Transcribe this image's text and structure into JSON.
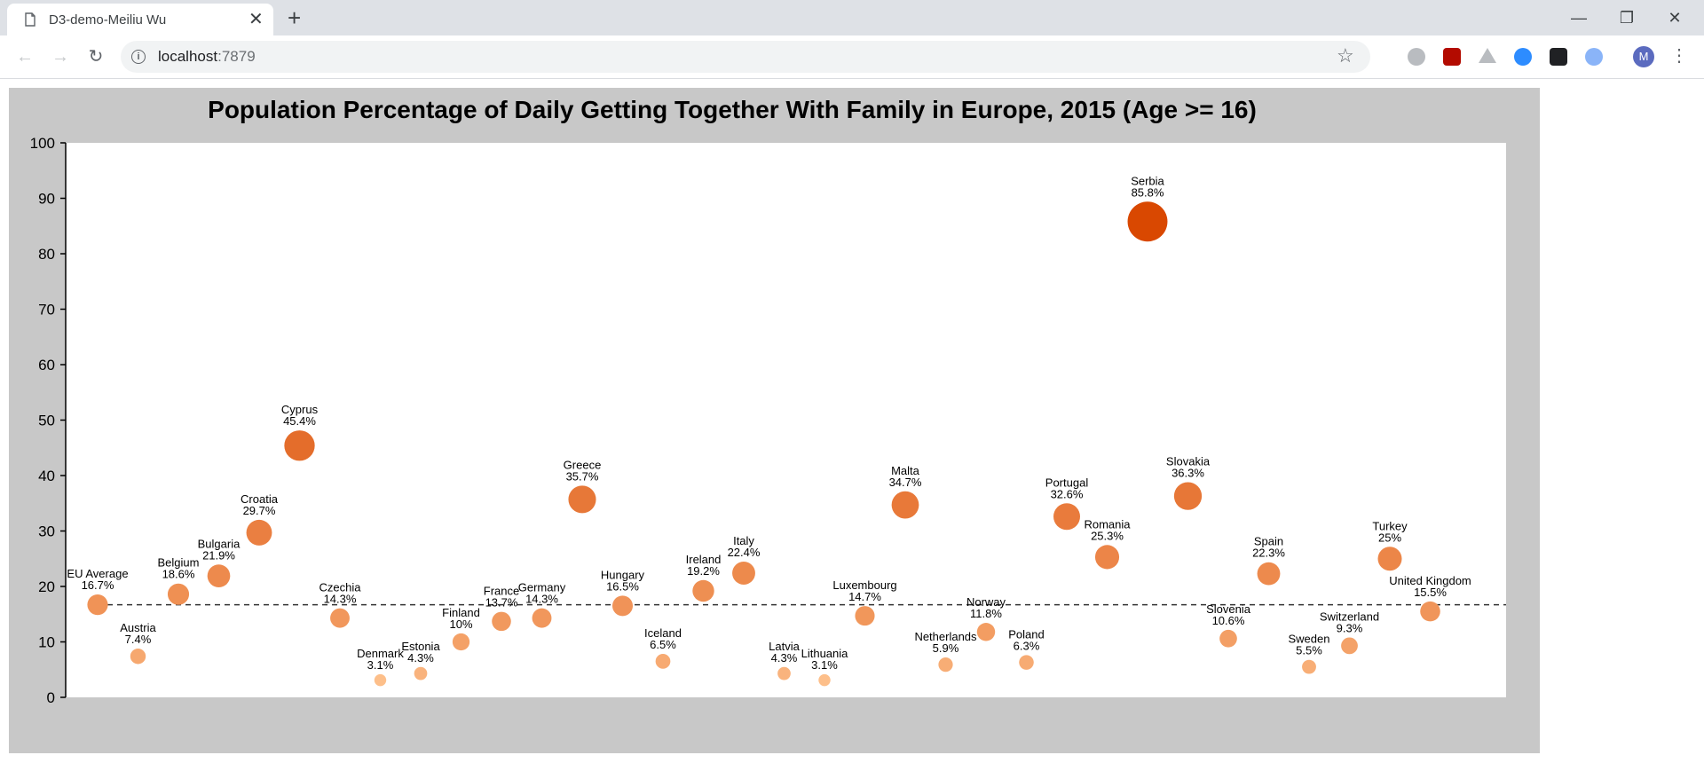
{
  "browser": {
    "tab_title": "D3-demo-Meiliu Wu",
    "url_host": "localhost",
    "url_port": ":7879",
    "avatar_letter": "M",
    "icons": [
      "page-icon",
      "close-icon",
      "plus-icon",
      "minimize-icon",
      "restore-icon",
      "close-window-icon",
      "back-icon",
      "forward-icon",
      "reload-icon",
      "info-icon",
      "star-icon",
      "skype-icon",
      "pdf-icon",
      "drive-icon",
      "zoom-icon",
      "incognito-icon",
      "edge-icon",
      "menu-icon"
    ]
  },
  "chart_data": {
    "type": "scatter",
    "title": "Population Percentage of Daily Getting Together With Family in Europe, 2015 (Age >= 16)",
    "ylim": [
      0,
      100
    ],
    "yticks": [
      "0",
      "10",
      "20",
      "30",
      "40",
      "50",
      "60",
      "70",
      "80",
      "90",
      "100"
    ],
    "reference_line": {
      "label": "EU Average",
      "value": 16.7,
      "style": "dashed"
    },
    "colors": {
      "low": "#fdbf8a",
      "high": "#d94801",
      "panel": "#c8c8c8",
      "plot": "#ffffff"
    },
    "points": [
      {
        "country": "EU Average",
        "value": 16.7,
        "label": "16.7%"
      },
      {
        "country": "Austria",
        "value": 7.4,
        "label": "7.4%"
      },
      {
        "country": "Belgium",
        "value": 18.6,
        "label": "18.6%"
      },
      {
        "country": "Bulgaria",
        "value": 21.9,
        "label": "21.9%"
      },
      {
        "country": "Croatia",
        "value": 29.7,
        "label": "29.7%"
      },
      {
        "country": "Cyprus",
        "value": 45.4,
        "label": "45.4%"
      },
      {
        "country": "Czechia",
        "value": 14.3,
        "label": "14.3%"
      },
      {
        "country": "Denmark",
        "value": 3.1,
        "label": "3.1%"
      },
      {
        "country": "Estonia",
        "value": 4.3,
        "label": "4.3%"
      },
      {
        "country": "Finland",
        "value": 10,
        "label": "10%"
      },
      {
        "country": "France",
        "value": 13.7,
        "label": "13.7%"
      },
      {
        "country": "Germany",
        "value": 14.3,
        "label": "14.3%"
      },
      {
        "country": "Greece",
        "value": 35.7,
        "label": "35.7%"
      },
      {
        "country": "Hungary",
        "value": 16.5,
        "label": "16.5%"
      },
      {
        "country": "Iceland",
        "value": 6.5,
        "label": "6.5%"
      },
      {
        "country": "Ireland",
        "value": 19.2,
        "label": "19.2%"
      },
      {
        "country": "Italy",
        "value": 22.4,
        "label": "22.4%"
      },
      {
        "country": "Latvia",
        "value": 4.3,
        "label": "4.3%"
      },
      {
        "country": "Lithuania",
        "value": 3.1,
        "label": "3.1%"
      },
      {
        "country": "Luxembourg",
        "value": 14.7,
        "label": "14.7%"
      },
      {
        "country": "Malta",
        "value": 34.7,
        "label": "34.7%"
      },
      {
        "country": "Netherlands",
        "value": 5.9,
        "label": "5.9%"
      },
      {
        "country": "Norway",
        "value": 11.8,
        "label": "11.8%"
      },
      {
        "country": "Poland",
        "value": 6.3,
        "label": "6.3%"
      },
      {
        "country": "Portugal",
        "value": 32.6,
        "label": "32.6%"
      },
      {
        "country": "Romania",
        "value": 25.3,
        "label": "25.3%"
      },
      {
        "country": "Serbia",
        "value": 85.8,
        "label": "85.8%"
      },
      {
        "country": "Slovakia",
        "value": 36.3,
        "label": "36.3%"
      },
      {
        "country": "Slovenia",
        "value": 10.6,
        "label": "10.6%"
      },
      {
        "country": "Spain",
        "value": 22.3,
        "label": "22.3%"
      },
      {
        "country": "Sweden",
        "value": 5.5,
        "label": "5.5%"
      },
      {
        "country": "Switzerland",
        "value": 9.3,
        "label": "9.3%"
      },
      {
        "country": "Turkey",
        "value": 25,
        "label": "25%"
      },
      {
        "country": "United Kingdom",
        "value": 15.5,
        "label": "15.5%"
      }
    ]
  }
}
